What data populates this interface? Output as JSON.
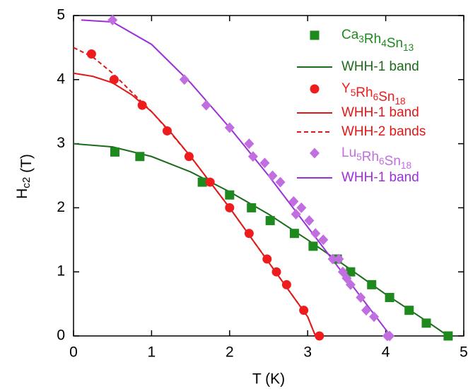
{
  "chart_data": {
    "type": "scatter-line",
    "xlabel": "T (K)",
    "ylabel": "Hc2 (T)",
    "xlim": [
      0,
      5
    ],
    "xticks": [
      0,
      1,
      2,
      3,
      4,
      5
    ],
    "ylim": [
      0,
      5
    ],
    "yticks": [
      0,
      1,
      2,
      3,
      4,
      5
    ],
    "series": [
      {
        "name": "Ca3Rh4Sn13",
        "kind": "scatter",
        "marker": "square",
        "color": "#1e8a1e",
        "x": [
          0.53,
          0.85,
          1.65,
          2.0,
          2.28,
          2.52,
          2.83,
          3.07,
          3.38,
          3.55,
          3.82,
          4.05,
          4.3,
          4.52,
          4.8
        ],
        "values": [
          2.87,
          2.8,
          2.4,
          2.2,
          2.0,
          1.8,
          1.6,
          1.4,
          1.2,
          1.0,
          0.8,
          0.6,
          0.4,
          0.2,
          0.0
        ]
      },
      {
        "name": "WHH-1 band",
        "kind": "line",
        "dash": false,
        "color": "#1a6b1a",
        "x": [
          0,
          0.5,
          1,
          1.5,
          2,
          2.5,
          3,
          3.5,
          4,
          4.5,
          4.8
        ],
        "values": [
          3.0,
          2.95,
          2.8,
          2.56,
          2.25,
          1.9,
          1.5,
          1.08,
          0.65,
          0.25,
          0.0
        ]
      },
      {
        "name": "Y5Rh6Sn18",
        "kind": "scatter",
        "marker": "circle",
        "color": "#ee1c1c",
        "x": [
          0.23,
          0.52,
          0.88,
          1.2,
          1.48,
          1.75,
          2.0,
          2.25,
          2.48,
          2.6,
          2.73,
          2.95,
          3.15
        ],
        "values": [
          4.4,
          4.0,
          3.6,
          3.2,
          2.8,
          2.4,
          2.0,
          1.6,
          1.2,
          1.0,
          0.8,
          0.4,
          0.0
        ]
      },
      {
        "name": "WHH-1 band",
        "kind": "line",
        "dash": false,
        "color": "#e01818",
        "x": [
          0,
          0.25,
          0.5,
          0.75,
          1,
          1.25,
          1.5,
          2,
          2.5,
          3,
          3.1
        ],
        "values": [
          4.1,
          4.05,
          3.95,
          3.76,
          3.5,
          3.17,
          2.8,
          2.0,
          1.15,
          0.3,
          0.0
        ]
      },
      {
        "name": "WHH-2 bands",
        "kind": "line",
        "dash": true,
        "color": "#e01818",
        "x": [
          0,
          0.25,
          0.5,
          0.75,
          1,
          1.25,
          1.5,
          2,
          2.5,
          3,
          3.1
        ],
        "values": [
          4.5,
          4.35,
          4.1,
          3.8,
          3.5,
          3.16,
          2.8,
          2.0,
          1.15,
          0.3,
          0.0
        ]
      },
      {
        "name": "Lu5Rh6Sn18",
        "kind": "scatter",
        "marker": "diamond",
        "color": "#c06ee0",
        "x": [
          0.5,
          1.42,
          1.7,
          2.0,
          2.25,
          2.3,
          2.45,
          2.55,
          2.65,
          2.82,
          2.85,
          2.92,
          3.02,
          3.1,
          3.2,
          3.32,
          3.4,
          3.45,
          3.5,
          3.55,
          3.68,
          3.75,
          3.85,
          4.02,
          4.05
        ],
        "values": [
          4.93,
          4.0,
          3.6,
          3.25,
          3.0,
          2.8,
          2.7,
          2.5,
          2.4,
          2.1,
          1.9,
          2.0,
          1.8,
          1.6,
          1.5,
          1.2,
          1.2,
          1.0,
          0.9,
          0.8,
          0.6,
          0.4,
          0.3,
          0.0,
          0.0
        ]
      },
      {
        "name": "WHH-1 band",
        "kind": "line",
        "dash": false,
        "color": "#9b30d8",
        "x": [
          0.1,
          0.5,
          1,
          1.5,
          2,
          2.5,
          3,
          3.5,
          4,
          4.07
        ],
        "values": [
          4.93,
          4.9,
          4.55,
          3.95,
          3.25,
          2.5,
          1.7,
          0.9,
          0.1,
          0.0
        ]
      }
    ]
  }
}
